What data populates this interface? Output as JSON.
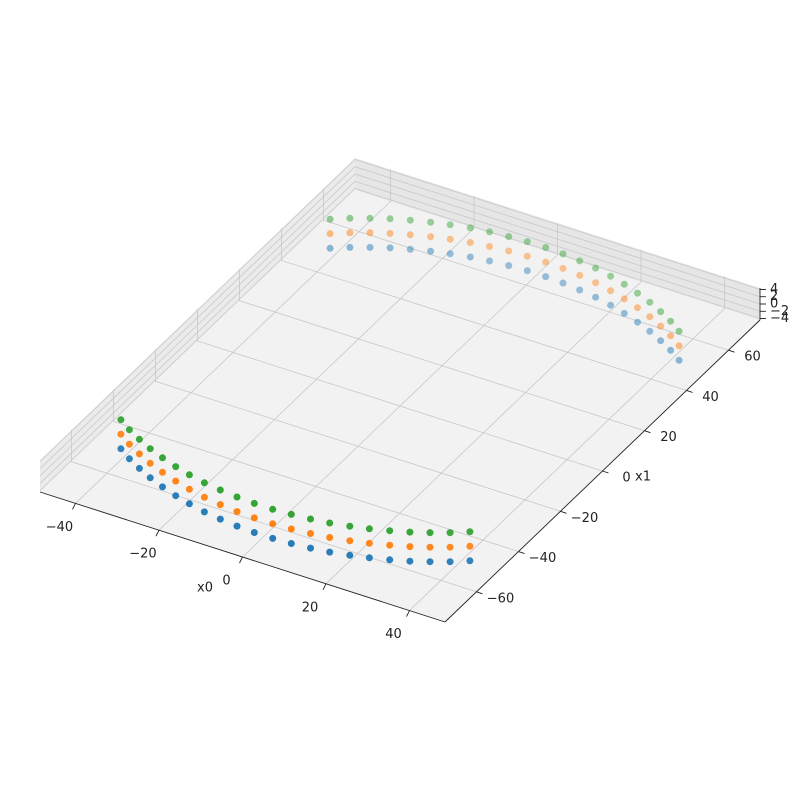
{
  "chart_data": {
    "type": "scatter3d",
    "x_label": "x0",
    "y_label": "x1",
    "x": [
      -41.8,
      -38.4,
      -34.8,
      -31.1,
      -27.2,
      -23.2,
      -19.2,
      -15.0,
      -10.8,
      -6.5,
      -2.2,
      2.2,
      6.5,
      10.8,
      15.0,
      19.2,
      23.2,
      27.2,
      31.1,
      34.8,
      38.4,
      41.8,
      -41.8,
      -38.4,
      -34.8,
      -31.1,
      -27.2,
      -23.2,
      -19.2,
      -15.0,
      -10.8,
      -6.5,
      -2.2,
      2.2,
      6.5,
      10.8,
      15.0,
      19.2,
      23.2,
      27.2,
      31.1,
      34.8,
      38.4,
      41.8
    ],
    "y": [
      -49.8,
      -52.5,
      -54.9,
      -57.1,
      -59.0,
      -60.7,
      -62.1,
      -63.3,
      -64.1,
      -64.7,
      -65.0,
      -65.0,
      -64.7,
      -64.1,
      -63.3,
      -62.1,
      -60.7,
      -59.0,
      -57.1,
      -54.9,
      -52.5,
      -49.8,
      49.8,
      52.5,
      54.9,
      57.1,
      59.0,
      60.7,
      62.1,
      63.3,
      64.1,
      64.7,
      65.0,
      65.0,
      64.7,
      64.1,
      63.3,
      62.1,
      60.7,
      59.0,
      57.1,
      54.9,
      52.5,
      49.8
    ],
    "series": [
      {
        "color": "#1f77b4",
        "values": [
          -4,
          -4,
          -4,
          -4,
          -4,
          -4,
          -4,
          -4,
          -4,
          -4,
          -4,
          -4,
          -4,
          -4,
          -4,
          -4,
          -4,
          -4,
          -4,
          -4,
          -4,
          -4,
          -4,
          -4,
          -4,
          -4,
          -4,
          -4,
          -4,
          -4,
          -4,
          -4,
          -4,
          -4,
          -4,
          -4,
          -4,
          -4,
          -4,
          -4,
          -4,
          -4,
          -4,
          -4
        ]
      },
      {
        "color": "#ff7f0e",
        "values": [
          0,
          0,
          0,
          0,
          0,
          0,
          0,
          0,
          0,
          0,
          0,
          0,
          0,
          0,
          0,
          0,
          0,
          0,
          0,
          0,
          0,
          0,
          0,
          0,
          0,
          0,
          0,
          0,
          0,
          0,
          0,
          0,
          0,
          0,
          0,
          0,
          0,
          0,
          0,
          0,
          0,
          0,
          0,
          0
        ]
      },
      {
        "color": "#2ca02c",
        "values": [
          4,
          4,
          4,
          4,
          4,
          4,
          4,
          4,
          4,
          4,
          4,
          4,
          4,
          4,
          4,
          4,
          4,
          4,
          4,
          4,
          4,
          4,
          4,
          4,
          4,
          4,
          4,
          4,
          4,
          4,
          4,
          4,
          4,
          4,
          4,
          4,
          4,
          4,
          4,
          4,
          4,
          4,
          4,
          4
        ]
      }
    ],
    "xlim": [
      -48.5,
      48.5
    ],
    "xticks": [
      {
        "value": -40,
        "label": "−40"
      },
      {
        "value": -20,
        "label": "−20"
      },
      0,
      20,
      40
    ],
    "ylim": [
      -75,
      75
    ],
    "yticks": [
      {
        "value": -60,
        "label": "−60"
      },
      {
        "value": -40,
        "label": "−40"
      },
      {
        "value": -20,
        "label": "−20"
      },
      0,
      20,
      40,
      60
    ],
    "zlim": [
      -4.4,
      4.4
    ],
    "zticks": [
      {
        "value": -4,
        "label": "−4"
      },
      {
        "value": -2,
        "label": "−2"
      },
      0,
      2,
      4
    ],
    "grid": true
  }
}
